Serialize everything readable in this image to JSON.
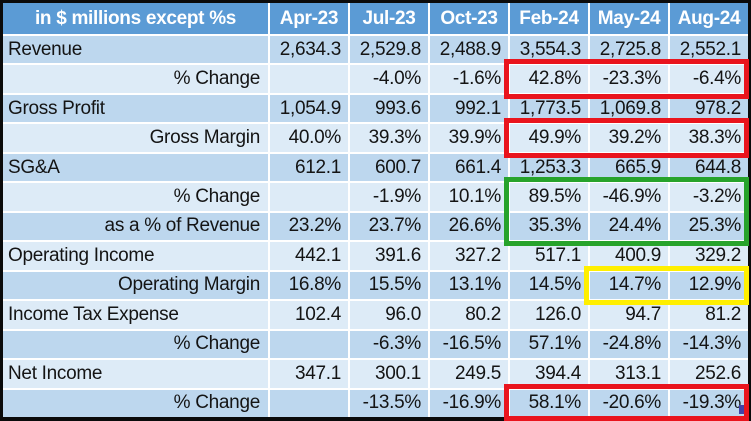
{
  "table": {
    "title_cell": "in $ millions except %s",
    "columns": [
      "Apr-23",
      "Jul-23",
      "Oct-23",
      "Feb-24",
      "May-24",
      "Aug-24"
    ],
    "rows": [
      {
        "label": "Revenue",
        "style": "main",
        "values": [
          "2,634.3",
          "2,529.8",
          "2,488.9",
          "3,554.3",
          "2,725.8",
          "2,552.1"
        ]
      },
      {
        "label": "% Change",
        "style": "sub",
        "values": [
          "",
          "-4.0%",
          "-1.6%",
          "42.8%",
          "-23.3%",
          "-6.4%"
        ]
      },
      {
        "label": "Gross Profit",
        "style": "main",
        "values": [
          "1,054.9",
          "993.6",
          "992.1",
          "1,773.5",
          "1,069.8",
          "978.2"
        ]
      },
      {
        "label": "Gross Margin",
        "style": "sub",
        "values": [
          "40.0%",
          "39.3%",
          "39.9%",
          "49.9%",
          "39.2%",
          "38.3%"
        ]
      },
      {
        "label": "SG&A",
        "style": "main",
        "values": [
          "612.1",
          "600.7",
          "661.4",
          "1,253.3",
          "665.9",
          "644.8"
        ]
      },
      {
        "label": "% Change",
        "style": "sub",
        "values": [
          "",
          "-1.9%",
          "10.1%",
          "89.5%",
          "-46.9%",
          "-3.2%"
        ]
      },
      {
        "label": "as a % of Revenue",
        "style": "sub",
        "values": [
          "23.2%",
          "23.7%",
          "26.6%",
          "35.3%",
          "24.4%",
          "25.3%"
        ]
      },
      {
        "label": "Operating Income",
        "style": "main",
        "values": [
          "442.1",
          "391.6",
          "327.2",
          "517.1",
          "400.9",
          "329.2"
        ]
      },
      {
        "label": "Operating Margin",
        "style": "sub",
        "values": [
          "16.8%",
          "15.5%",
          "13.1%",
          "14.5%",
          "14.7%",
          "12.9%"
        ]
      },
      {
        "label": "Income Tax Expense",
        "style": "main",
        "values": [
          "102.4",
          "96.0",
          "80.2",
          "126.0",
          "94.7",
          "81.2"
        ]
      },
      {
        "label": "% Change",
        "style": "sub",
        "values": [
          "",
          "-6.3%",
          "-16.5%",
          "57.1%",
          "-24.8%",
          "-14.3%"
        ]
      },
      {
        "label": "Net Income",
        "style": "main",
        "values": [
          "347.1",
          "300.1",
          "249.5",
          "394.4",
          "313.1",
          "252.6"
        ]
      },
      {
        "label": "% Change",
        "style": "sub",
        "values": [
          "",
          "-13.5%",
          "-16.9%",
          "58.1%",
          "-20.6%",
          "-19.3%"
        ]
      }
    ]
  },
  "colors": {
    "header_bg": "#5b9bd5",
    "header_text": "#ffffff",
    "row_medium": "#bdd7ee",
    "row_light": "#ddebf7",
    "gridline": "#ffffff",
    "outer_border": "#0a0a0a",
    "text": "#141414",
    "highlight_red": "#e9141d",
    "highlight_green": "#27a32b",
    "highlight_yellow": "#ffef00",
    "corner_mark": "#4242a8"
  },
  "annotations": [
    {
      "name": "highlight-revenue-pct-change",
      "color_key": "highlight_red",
      "row_start": 2,
      "row_end": 2,
      "col_start": 4,
      "col_end": 6
    },
    {
      "name": "highlight-gross-margin",
      "color_key": "highlight_red",
      "row_start": 4,
      "row_end": 4,
      "col_start": 4,
      "col_end": 6
    },
    {
      "name": "highlight-sga-change-and-pct",
      "color_key": "highlight_green",
      "row_start": 6,
      "row_end": 7,
      "col_start": 4,
      "col_end": 6
    },
    {
      "name": "highlight-operating-margin",
      "color_key": "highlight_yellow",
      "row_start": 9,
      "row_end": 9,
      "col_start": 5,
      "col_end": 6
    },
    {
      "name": "highlight-net-income-pct-change",
      "color_key": "highlight_red",
      "row_start": 13,
      "row_end": 13,
      "col_start": 4,
      "col_end": 6
    }
  ]
}
